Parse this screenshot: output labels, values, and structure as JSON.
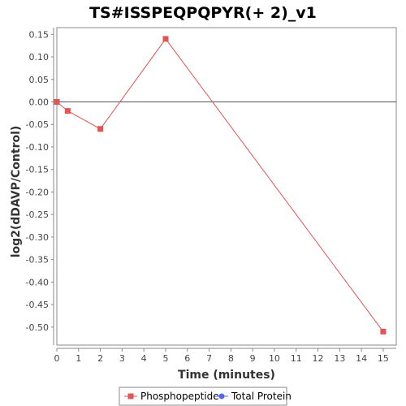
{
  "chart_data": {
    "type": "line",
    "title": "TS#ISSPEQPQPYR(+ 2)_v1",
    "xlabel": "Time (minutes)",
    "ylabel": "log2(dDAVP/Control)",
    "xlim": [
      0,
      15.6
    ],
    "ylim": [
      -0.54,
      0.165
    ],
    "x_ticks": [
      0,
      1,
      2,
      3,
      4,
      5,
      6,
      7,
      8,
      9,
      10,
      11,
      12,
      13,
      14,
      15
    ],
    "x_tick_labels": [
      "0",
      "1",
      "2",
      "3",
      "4",
      "5",
      "6",
      "7",
      "8",
      "9",
      "10",
      "11",
      "12",
      "13",
      "14",
      "15"
    ],
    "y_ticks": [
      0.15,
      0.1,
      0.05,
      0.0,
      -0.05,
      -0.1,
      -0.15,
      -0.2,
      -0.25,
      -0.3,
      -0.35,
      -0.4,
      -0.45,
      -0.5
    ],
    "y_tick_labels": [
      "0.15",
      "0.10",
      "0.05",
      "0.00",
      "-0.05",
      "-0.10",
      "-0.15",
      "-0.20",
      "-0.25",
      "-0.30",
      "-0.35",
      "-0.40",
      "-0.45",
      "-0.50"
    ],
    "grid": false,
    "zero_line": true,
    "legend_position": "bottom",
    "series": [
      {
        "name": "Phosphopeptide",
        "color": "#e05555",
        "marker": "square",
        "x": [
          0,
          0.5,
          2,
          5,
          15
        ],
        "y": [
          0.0,
          -0.02,
          -0.06,
          0.14,
          -0.51
        ]
      }
    ],
    "legend": [
      {
        "name": "Phosphopeptide",
        "color": "#e05555",
        "marker": "square"
      },
      {
        "name": "Total Protein",
        "color": "#5566ee",
        "marker": "circle"
      }
    ]
  }
}
